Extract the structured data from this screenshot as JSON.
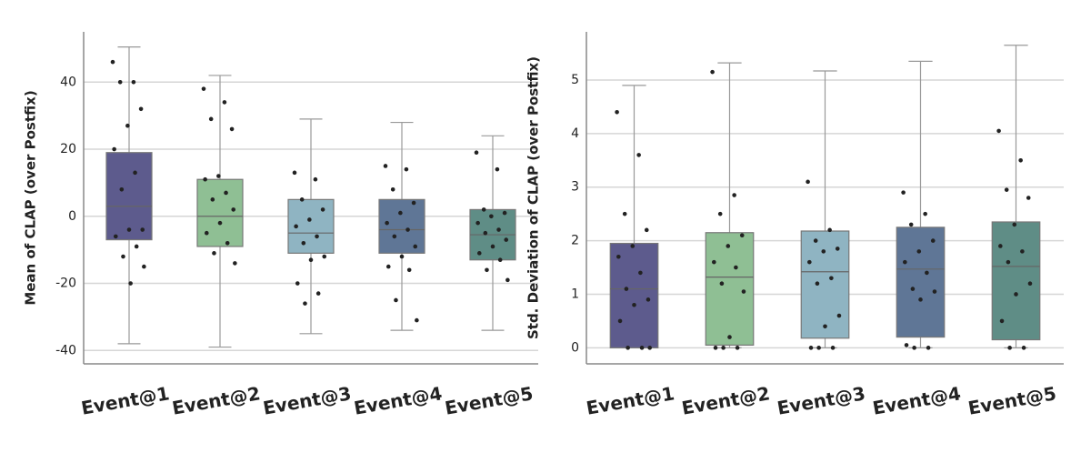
{
  "chart_data": [
    {
      "type": "box",
      "ylabel": "Mean of CLAP (over Postfix)",
      "categories": [
        "Event@1",
        "Event@2",
        "Event@3",
        "Event@4",
        "Event@5"
      ],
      "colors": [
        "#5d5b8d",
        "#8fbf94",
        "#8fb4c2",
        "#5f7696",
        "#5f8d86"
      ],
      "ylim": [
        -44,
        55
      ],
      "yticks": [
        -40,
        -20,
        0,
        20,
        40
      ],
      "grid": true,
      "boxes": [
        {
          "whislo": -38,
          "q1": -7,
          "med": 3,
          "q3": 19,
          "whishi": 50.5,
          "points": [
            46,
            40,
            40,
            32,
            27,
            20,
            13,
            8,
            -4,
            -4,
            -6,
            -9,
            -12,
            -15,
            -20
          ]
        },
        {
          "whislo": -39,
          "q1": -9,
          "med": 0,
          "q3": 11,
          "whishi": 42,
          "points": [
            38,
            34,
            29,
            26,
            12,
            11,
            7,
            5,
            2,
            -2,
            -5,
            -8,
            -11,
            -14
          ]
        },
        {
          "whislo": -35,
          "q1": -11,
          "med": -5,
          "q3": 5,
          "whishi": 29,
          "points": [
            13,
            11,
            5,
            2,
            -1,
            -3,
            -6,
            -8,
            -12,
            -13,
            -20,
            -23,
            -26
          ]
        },
        {
          "whislo": -34,
          "q1": -11,
          "med": -4,
          "q3": 5,
          "whishi": 28,
          "points": [
            15,
            14,
            8,
            4,
            1,
            -2,
            -4,
            -6,
            -9,
            -12,
            -15,
            -16,
            -25,
            -31
          ]
        },
        {
          "whislo": -34,
          "q1": -13,
          "med": -5.5,
          "q3": 2,
          "whishi": 24,
          "points": [
            19,
            14,
            2,
            1,
            0,
            -2,
            -4,
            -5,
            -7,
            -9,
            -11,
            -13,
            -16,
            -19
          ]
        }
      ]
    },
    {
      "type": "box",
      "ylabel": "Std. Deviation of CLAP (over Postfix)",
      "categories": [
        "Event@1",
        "Event@2",
        "Event@3",
        "Event@4",
        "Event@5"
      ],
      "colors": [
        "#5d5b8d",
        "#8fbf94",
        "#8fb4c2",
        "#5f7696",
        "#5f8d86"
      ],
      "ylim": [
        -0.3,
        5.9
      ],
      "yticks": [
        0,
        1,
        2,
        3,
        4,
        5
      ],
      "grid": true,
      "boxes": [
        {
          "whislo": 0,
          "q1": 0,
          "med": 1.1,
          "q3": 1.95,
          "whishi": 4.9,
          "points": [
            4.4,
            3.6,
            2.5,
            2.2,
            1.9,
            1.7,
            1.4,
            1.1,
            0.9,
            0.8,
            0.5,
            0,
            0,
            0
          ]
        },
        {
          "whislo": 0,
          "q1": 0.05,
          "med": 1.32,
          "q3": 2.15,
          "whishi": 5.32,
          "points": [
            5.15,
            2.85,
            2.5,
            2.1,
            1.9,
            1.6,
            1.5,
            1.2,
            1.05,
            0.2,
            0,
            0,
            0
          ]
        },
        {
          "whislo": 0,
          "q1": 0.18,
          "med": 1.42,
          "q3": 2.18,
          "whishi": 5.17,
          "points": [
            3.1,
            2.2,
            2.0,
            1.85,
            1.8,
            1.6,
            1.3,
            1.2,
            0.6,
            0.4,
            0,
            0,
            0
          ]
        },
        {
          "whislo": 0,
          "q1": 0.2,
          "med": 1.47,
          "q3": 2.25,
          "whishi": 5.35,
          "points": [
            2.9,
            2.5,
            2.3,
            2.0,
            1.8,
            1.6,
            1.4,
            1.1,
            1.05,
            0.9,
            0.05,
            0,
            0
          ]
        },
        {
          "whislo": 0,
          "q1": 0.15,
          "med": 1.52,
          "q3": 2.35,
          "whishi": 5.65,
          "points": [
            4.05,
            3.5,
            2.95,
            2.8,
            2.3,
            1.9,
            1.8,
            1.6,
            1.2,
            1.0,
            0.5,
            0,
            0
          ]
        }
      ]
    }
  ]
}
